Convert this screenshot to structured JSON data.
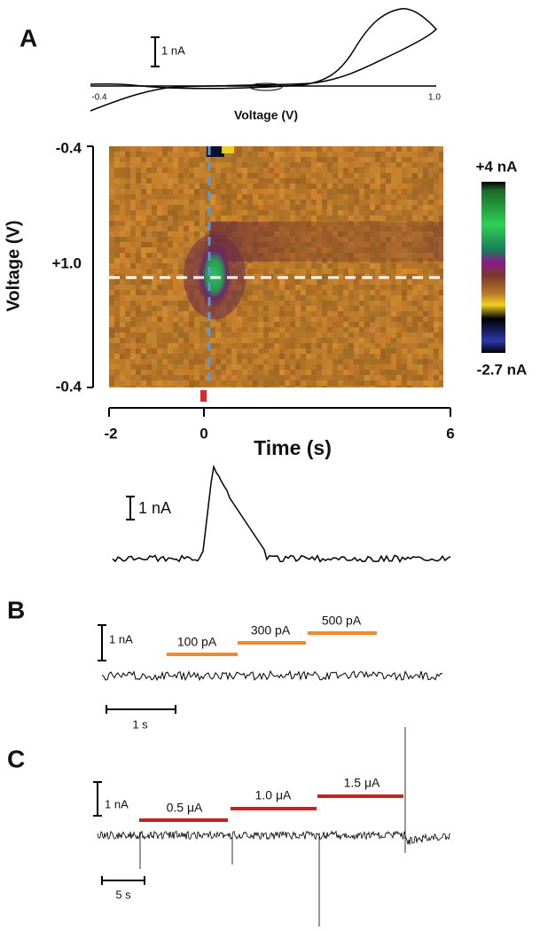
{
  "panels": [
    {
      "label": "A",
      "voltammogram": {
        "scale_label": "1 nA",
        "x_start": "-0.4",
        "x_end": "1.0",
        "x_title": "Voltage (V)"
      },
      "color_plot": {
        "y_title": "Voltage (V)",
        "y_top": "-0.4",
        "y_mid": "+1.0",
        "y_bottom": "-0.4",
        "x_ticks": [
          "-2",
          "0",
          "6"
        ],
        "x_title": "Time (s)",
        "colorbar_max": "+4 nA",
        "colorbar_min": "-2.7 nA"
      },
      "trace": {
        "scale_label": "1 nA"
      }
    },
    {
      "label": "B",
      "scale_label": "1 nA",
      "stimuli": [
        "100 pA",
        "300 pA",
        "500 pA"
      ],
      "time_scale": "1 s"
    },
    {
      "label": "C",
      "scale_label": "1 nA",
      "stimuli": [
        "0.5 μA",
        "1.0 μA",
        "1.5 μA"
      ],
      "time_scale": "5 s"
    }
  ]
}
